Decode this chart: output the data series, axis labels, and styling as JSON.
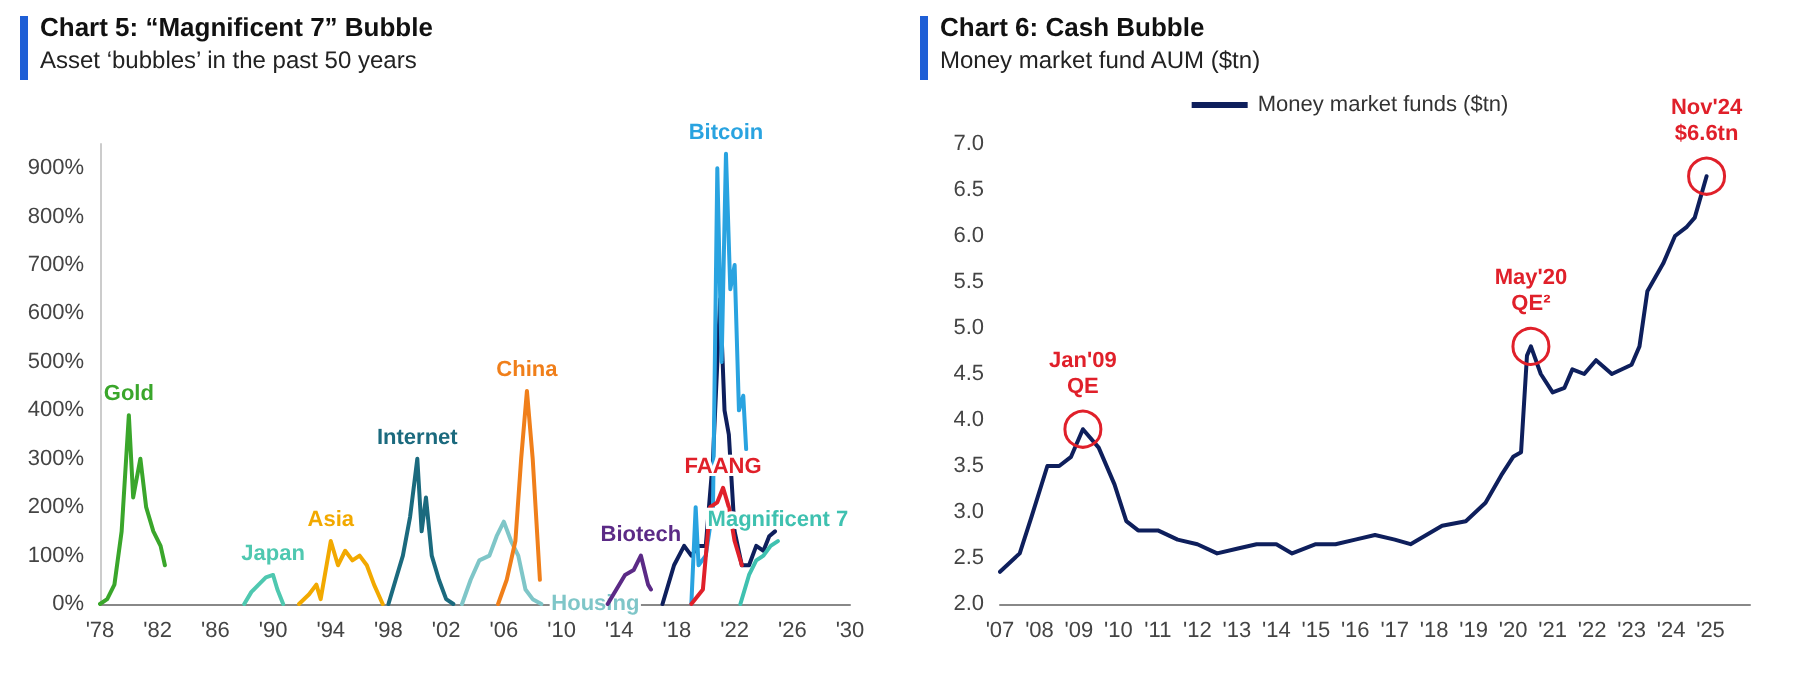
{
  "chart_data": [
    {
      "type": "line",
      "title": "Chart 5: “Magnificent 7” Bubble",
      "subtitle": "Asset ‘bubbles’ in the past 50 years",
      "marker": "none",
      "legend": false,
      "grid": false,
      "xlim": [
        1978,
        2030
      ],
      "xticks": [
        {
          "value": 1978,
          "label": "'78"
        },
        {
          "value": 1982,
          "label": "'82"
        },
        {
          "value": 1986,
          "label": "'86"
        },
        {
          "value": 1990,
          "label": "'90"
        },
        {
          "value": 1994,
          "label": "'94"
        },
        {
          "value": 1998,
          "label": "'98"
        },
        {
          "value": 2002,
          "label": "'02"
        },
        {
          "value": 2006,
          "label": "'06"
        },
        {
          "value": 2010,
          "label": "'10"
        },
        {
          "value": 2014,
          "label": "'14"
        },
        {
          "value": 2018,
          "label": "'18"
        },
        {
          "value": 2022,
          "label": "'22"
        },
        {
          "value": 2026,
          "label": "'26"
        },
        {
          "value": 2030,
          "label": "'30"
        }
      ],
      "ylim": [
        0,
        950
      ],
      "yticks": [
        {
          "value": 0,
          "label": "0%"
        },
        {
          "value": 100,
          "label": "100%"
        },
        {
          "value": 200,
          "label": "200%"
        },
        {
          "value": 300,
          "label": "300%"
        },
        {
          "value": 400,
          "label": "400%"
        },
        {
          "value": 500,
          "label": "500%"
        },
        {
          "value": 600,
          "label": "600%"
        },
        {
          "value": 700,
          "label": "700%"
        },
        {
          "value": 800,
          "label": "800%"
        },
        {
          "value": 900,
          "label": "900%"
        }
      ],
      "series": [
        {
          "name": "Gold",
          "color": "#3aa62b",
          "x": [
            1978,
            1978.5,
            1979,
            1979.5,
            1980,
            1980.3,
            1980.8,
            1981.2,
            1981.7,
            1982.2,
            1982.5
          ],
          "values": [
            0,
            10,
            40,
            150,
            390,
            220,
            300,
            200,
            150,
            120,
            80
          ]
        },
        {
          "name": "Japan",
          "color": "#4fc8b0",
          "x": [
            1988,
            1988.5,
            1989,
            1989.5,
            1990,
            1990.3,
            1990.7
          ],
          "values": [
            0,
            25,
            40,
            55,
            60,
            30,
            0
          ]
        },
        {
          "name": "Asia",
          "color": "#f2a900",
          "x": [
            1991.8,
            1992.5,
            1993,
            1993.3,
            1994,
            1994.5,
            1995,
            1995.5,
            1996,
            1996.5,
            1997,
            1997.6
          ],
          "values": [
            0,
            20,
            40,
            10,
            130,
            80,
            110,
            90,
            100,
            80,
            40,
            0
          ]
        },
        {
          "name": "Internet",
          "color": "#1b6a7e",
          "x": [
            1998,
            1998.5,
            1999,
            1999.5,
            2000,
            2000.3,
            2000.6,
            2001,
            2001.5,
            2002,
            2002.5
          ],
          "values": [
            0,
            50,
            100,
            180,
            300,
            150,
            220,
            100,
            50,
            10,
            0
          ]
        },
        {
          "name": "Housing",
          "color": "#7fc6c8",
          "x": [
            2003.1,
            2003.7,
            2004.3,
            2005,
            2005.5,
            2006,
            2006.5,
            2007,
            2007.5,
            2008,
            2008.6
          ],
          "values": [
            0,
            50,
            90,
            100,
            140,
            170,
            130,
            100,
            30,
            10,
            0
          ]
        },
        {
          "name": "China",
          "color": "#f07f1a",
          "x": [
            2005.6,
            2006.2,
            2006.8,
            2007.2,
            2007.6,
            2008,
            2008.5
          ],
          "values": [
            0,
            50,
            130,
            300,
            440,
            300,
            50
          ]
        },
        {
          "name": "Biotech",
          "color": "#5b2a86",
          "x": [
            2013.2,
            2013.8,
            2014.4,
            2015,
            2015.5,
            2016,
            2016.2
          ],
          "values": [
            0,
            30,
            60,
            70,
            100,
            40,
            30
          ]
        },
        {
          "color": "#0e1f5c",
          "x": [
            2017,
            2017.8,
            2018.5,
            2019,
            2019.5,
            2020,
            2020.5,
            2021,
            2021.3,
            2021.6,
            2022,
            2022.5,
            2023,
            2023.5,
            2024,
            2024.4,
            2024.8
          ],
          "values": [
            0,
            80,
            120,
            100,
            120,
            120,
            300,
            630,
            400,
            350,
            150,
            80,
            80,
            120,
            110,
            140,
            150
          ]
        },
        {
          "name": "Bitcoin",
          "color": "#29a3e0",
          "x": [
            2019,
            2019.3,
            2019.5,
            2020,
            2020.5,
            2020.8,
            2021.1,
            2021.4,
            2021.7,
            2022,
            2022.3,
            2022.6,
            2022.8
          ],
          "values": [
            0,
            200,
            80,
            100,
            200,
            900,
            500,
            930,
            650,
            700,
            400,
            430,
            320
          ]
        },
        {
          "name": "FAANG",
          "color": "#e0202a",
          "x": [
            2019,
            2019.8,
            2020.3,
            2020.8,
            2021.2,
            2021.6,
            2022,
            2022.5
          ],
          "values": [
            0,
            30,
            200,
            210,
            240,
            200,
            130,
            80
          ]
        },
        {
          "name": "Magnificent 7",
          "color": "#3fc1b0",
          "x": [
            2022.4,
            2023,
            2023.5,
            2024,
            2024.5,
            2025
          ],
          "values": [
            0,
            60,
            90,
            100,
            120,
            130
          ]
        }
      ]
    },
    {
      "type": "line",
      "title": "Chart 6: Cash Bubble",
      "subtitle": "Money market fund AUM ($tn)",
      "marker": "none",
      "legend": "top",
      "grid": false,
      "xlim": [
        2007,
        2026
      ],
      "xticks": [
        {
          "value": 2007,
          "label": "'07"
        },
        {
          "value": 2008,
          "label": "'08"
        },
        {
          "value": 2009,
          "label": "'09"
        },
        {
          "value": 2010,
          "label": "'10"
        },
        {
          "value": 2011,
          "label": "'11"
        },
        {
          "value": 2012,
          "label": "'12"
        },
        {
          "value": 2013,
          "label": "'13"
        },
        {
          "value": 2014,
          "label": "'14"
        },
        {
          "value": 2015,
          "label": "'15"
        },
        {
          "value": 2016,
          "label": "'16"
        },
        {
          "value": 2017,
          "label": "'17"
        },
        {
          "value": 2018,
          "label": "'18"
        },
        {
          "value": 2019,
          "label": "'19"
        },
        {
          "value": 2020,
          "label": "'20"
        },
        {
          "value": 2021,
          "label": "'21"
        },
        {
          "value": 2022,
          "label": "'22"
        },
        {
          "value": 2023,
          "label": "'23"
        },
        {
          "value": 2024,
          "label": "'24"
        },
        {
          "value": 2025,
          "label": "'25"
        }
      ],
      "ylim": [
        2,
        7
      ],
      "yticks": [
        {
          "value": 2,
          "label": "2.0"
        },
        2.5,
        {
          "value": 3,
          "label": "3.0"
        },
        3.5,
        {
          "value": 4,
          "label": "4.0"
        },
        4.5,
        {
          "value": 5,
          "label": "5.0"
        },
        5.5,
        {
          "value": 6,
          "label": "6.0"
        },
        6.5,
        {
          "value": 7,
          "label": "7.0"
        }
      ],
      "annotations": [
        {
          "text": "Jan'09\nQE",
          "x": 2009.1,
          "y": 3.9
        },
        {
          "text": "May'20\nQE²",
          "x": 2020.45,
          "y": 4.8
        },
        {
          "text": "Nov'24\n$6.6tn",
          "x": 2024.9,
          "y": 6.65
        }
      ],
      "series": [
        {
          "name": "Money market funds ($tn)",
          "color": "#0e1f5c",
          "x": [
            2007,
            2007.5,
            2007.8,
            2008.2,
            2008.5,
            2008.8,
            2009.1,
            2009.5,
            2009.9,
            2010.2,
            2010.5,
            2011,
            2011.5,
            2012,
            2012.5,
            2013,
            2013.5,
            2014,
            2014.4,
            2015,
            2015.5,
            2016,
            2016.5,
            2017,
            2017.4,
            2017.8,
            2018.2,
            2018.8,
            2019.3,
            2019.7,
            2020,
            2020.2,
            2020.35,
            2020.45,
            2020.7,
            2021,
            2021.3,
            2021.5,
            2021.8,
            2022.1,
            2022.5,
            2023,
            2023.2,
            2023.4,
            2023.8,
            2024.1,
            2024.4,
            2024.6,
            2024.9
          ],
          "values": [
            2.35,
            2.55,
            2.95,
            3.5,
            3.5,
            3.6,
            3.9,
            3.7,
            3.3,
            2.9,
            2.8,
            2.8,
            2.7,
            2.65,
            2.55,
            2.6,
            2.65,
            2.65,
            2.55,
            2.65,
            2.65,
            2.7,
            2.75,
            2.7,
            2.65,
            2.75,
            2.85,
            2.9,
            3.1,
            3.4,
            3.6,
            3.65,
            4.7,
            4.8,
            4.5,
            4.3,
            4.35,
            4.55,
            4.5,
            4.65,
            4.5,
            4.6,
            4.8,
            5.4,
            5.7,
            6.0,
            6.1,
            6.2,
            6.65
          ]
        }
      ]
    }
  ]
}
